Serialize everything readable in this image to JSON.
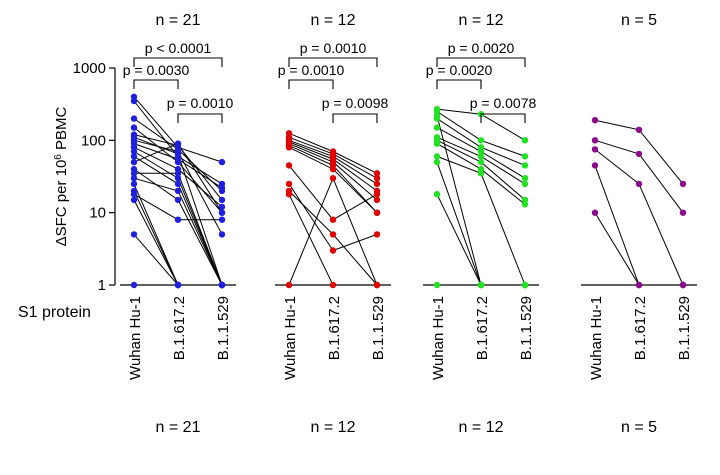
{
  "chart_data": {
    "type": "scatter",
    "subtype": "paired-line dot plot",
    "ylabel_prefix": "ΔSFC per 10",
    "ylabel_sup": "6",
    "ylabel_suffix": " PBMC",
    "yscale": "log10",
    "ylim": [
      1,
      1000
    ],
    "yticks": [
      {
        "value": 1,
        "label": "1"
      },
      {
        "value": 10,
        "label": "10"
      },
      {
        "value": 100,
        "label": "100"
      },
      {
        "value": 1000,
        "label": "1000"
      }
    ],
    "row_label": "S1 protein",
    "categories": [
      "Wuhan Hu-1",
      "B.1.617.2",
      "B.1.1.529"
    ],
    "panels": [
      {
        "n_label": "n = 21",
        "color": "#1f1fe0",
        "series": [
          [
            400,
            80,
            50
          ],
          [
            350,
            60,
            25
          ],
          [
            200,
            75,
            20
          ],
          [
            150,
            50,
            10
          ],
          [
            120,
            85,
            15
          ],
          [
            100,
            70,
            5
          ],
          [
            90,
            55,
            22
          ],
          [
            80,
            40,
            12
          ],
          [
            70,
            30,
            1
          ],
          [
            60,
            25,
            1
          ],
          [
            50,
            90,
            10
          ],
          [
            40,
            15,
            1
          ],
          [
            35,
            35,
            1
          ],
          [
            30,
            20,
            1
          ],
          [
            25,
            1,
            1
          ],
          [
            20,
            1,
            1
          ],
          [
            18,
            8,
            8
          ],
          [
            15,
            1,
            1
          ],
          [
            5,
            1,
            1
          ],
          [
            110,
            65,
            1
          ],
          [
            1,
            1,
            1
          ]
        ],
        "comparisons": [
          {
            "label": "p < 0.0001",
            "from": 0,
            "to": 2
          },
          {
            "label": "p = 0.0030",
            "from": 0,
            "to": 1
          },
          {
            "label": "p = 0.0010",
            "from": 1,
            "to": 2
          }
        ]
      },
      {
        "n_label": "n = 12",
        "color": "#e00000",
        "series": [
          [
            125,
            70,
            35
          ],
          [
            110,
            65,
            30
          ],
          [
            100,
            60,
            25
          ],
          [
            95,
            55,
            20
          ],
          [
            90,
            50,
            15
          ],
          [
            85,
            45,
            10
          ],
          [
            80,
            40,
            10
          ],
          [
            45,
            8,
            18
          ],
          [
            25,
            3,
            5
          ],
          [
            20,
            5,
            1
          ],
          [
            18,
            1,
            1
          ],
          [
            1,
            30,
            1
          ]
        ],
        "comparisons": [
          {
            "label": "p = 0.0010",
            "from": 0,
            "to": 2
          },
          {
            "label": "p = 0.0010",
            "from": 0,
            "to": 1
          },
          {
            "label": "p = 0.0098",
            "from": 1,
            "to": 2
          }
        ]
      },
      {
        "n_label": "n = 12",
        "color": "#22e022",
        "series": [
          [
            270,
            230,
            100
          ],
          [
            250,
            100,
            60
          ],
          [
            200,
            80,
            45
          ],
          [
            150,
            70,
            30
          ],
          [
            110,
            60,
            25
          ],
          [
            100,
            50,
            15
          ],
          [
            90,
            40,
            13
          ],
          [
            60,
            35,
            1
          ],
          [
            50,
            1,
            1
          ],
          [
            18,
            1,
            1
          ],
          [
            1,
            1,
            1
          ],
          [
            220,
            1,
            1
          ]
        ],
        "comparisons": [
          {
            "label": "p = 0.0020",
            "from": 0,
            "to": 2
          },
          {
            "label": "p = 0.0020",
            "from": 0,
            "to": 1
          },
          {
            "label": "p = 0.0078",
            "from": 1,
            "to": 2
          }
        ]
      },
      {
        "n_label": "n = 5",
        "color": "#8b0a8b",
        "series": [
          [
            190,
            140,
            25
          ],
          [
            100,
            65,
            10
          ],
          [
            75,
            25,
            1
          ],
          [
            45,
            1,
            1
          ],
          [
            10,
            1,
            1
          ]
        ],
        "comparisons": []
      }
    ]
  }
}
